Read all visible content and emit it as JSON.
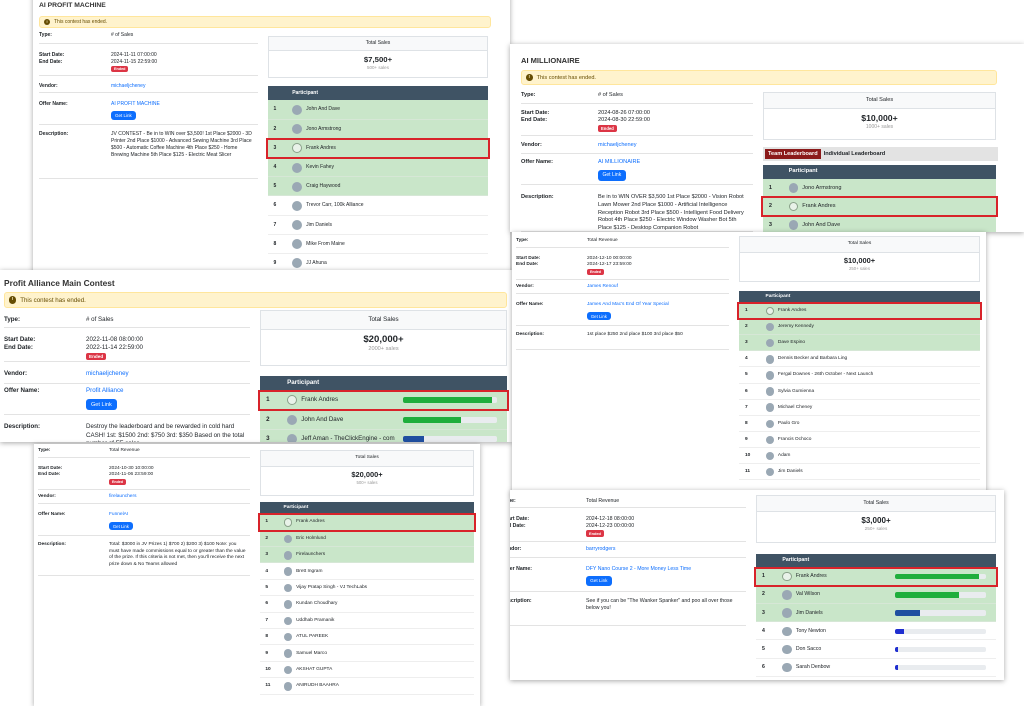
{
  "cards": [
    {
      "id": "c1",
      "title": "AI PROFIT MACHINE",
      "alert": "This contest has ended.",
      "type_label": "Type:",
      "type": "# of Sales",
      "start_label": "Start Date:",
      "start": "2024-11-11 07:00:00",
      "end_label": "End Date:",
      "end": "2024-11-15 22:59:00",
      "ended_badge": "Ended",
      "vendor_label": "Vendor:",
      "vendor": "michaeljcheney",
      "offer_label": "Offer Name:",
      "offer": "AI PROFIT MACHINE",
      "getlink": "Get Link",
      "desc_label": "Description:",
      "desc": "JV CONTEST - Be in to WIN over $3,500! 1st Place $2000 - 3D Printer 2nd Place $1000 - Advanced Sewing Machine 3rd Place $500 - Automatic Coffee Machine 4th Place $250 - Home Brewing Machine 5th Place $125 - Electric Meat Slicer",
      "sales_header": "Total Sales",
      "sales_amount": "$7,500+",
      "sales_count": "500+ sales",
      "participant_header": "Participant",
      "participants": [
        {
          "rank": "1",
          "name": "John And Dave"
        },
        {
          "rank": "2",
          "name": "Jono Armstrong"
        },
        {
          "rank": "3",
          "name": "Frank Andres"
        },
        {
          "rank": "4",
          "name": "Kevin Fahey"
        },
        {
          "rank": "5",
          "name": "Craig Haywood"
        },
        {
          "rank": "6",
          "name": "Trevor Carr, 100k Alliance"
        },
        {
          "rank": "7",
          "name": "Jim Daniels"
        },
        {
          "rank": "8",
          "name": "Mike From Maine"
        },
        {
          "rank": "9",
          "name": "JJ Ahuna"
        },
        {
          "rank": "10",
          "name": "Hunter Barker"
        }
      ]
    },
    {
      "id": "c2",
      "title": "AI MILLIONAIRE",
      "alert": "This contest has ended.",
      "type_label": "Type:",
      "type": "# of Sales",
      "start_label": "Start Date:",
      "start": "2024-08-26 07:00:00",
      "end_label": "End Date:",
      "end": "2024-08-30 22:59:00",
      "ended_badge": "Ended",
      "vendor_label": "Vendor:",
      "vendor": "michaeljcheney",
      "offer_label": "Offer Name:",
      "offer": "AI MILLIONAIRE",
      "getlink": "Get Link",
      "desc_label": "Description:",
      "desc": "Be in to WIN OVER $3,500 1st Place $2000 - Vision Robot Lawn Mower 2nd Place $1000 - Artificial Intelligence Reception Robot 3rd Place $500 - Intelligent Food Delivery Robot 4th Place $250 - Electric Window Washer Bot 5th Place $125 - Desktop Companion Robot",
      "sales_header": "Total Sales",
      "sales_amount": "$10,000+",
      "sales_count": "1000+ sales",
      "tab_team": "Team Leaderboard",
      "tab_individual": "Individual Leaderboard",
      "participant_header": "Participant",
      "participants": [
        {
          "rank": "1",
          "name": "Jono Armstrong"
        },
        {
          "rank": "2",
          "name": "Frank Andres"
        },
        {
          "rank": "3",
          "name": "John And Dave"
        }
      ]
    },
    {
      "id": "c3",
      "title": "Profit Alliance Main Contest",
      "alert": "This contest has ended.",
      "type_label": "Type:",
      "type": "# of Sales",
      "start_label": "Start Date:",
      "start": "2022-11-08 08:00:00",
      "end_label": "End Date:",
      "end": "2022-11-14 22:59:00",
      "ended_badge": "Ended",
      "vendor_label": "Vendor:",
      "vendor": "michaeljcheney",
      "offer_label": "Offer Name:",
      "offer": "Profit Alliance",
      "getlink": "Get Link",
      "desc_label": "Description:",
      "desc": "Destroy the leaderboard and be rewarded in cold hard CASH! 1st: $1500 2nd: $750 3rd: $350 Based on the total number of FE sales",
      "sales_header": "Total Sales",
      "sales_amount": "$20,000+",
      "sales_count": "2000+ sales",
      "participant_header": "Participant",
      "participants": [
        {
          "rank": "1",
          "name": "Frank Andres",
          "bar": 0.95,
          "color": "#1fae3c"
        },
        {
          "rank": "2",
          "name": "John And Dave",
          "bar": 0.62,
          "color": "#1fae3c"
        },
        {
          "rank": "3",
          "name": "Jeff Aman - TheClickEngine - com",
          "bar": 0.22,
          "color": "#1f4fa0"
        }
      ]
    },
    {
      "id": "c4",
      "title": "",
      "type_label": "Type:",
      "type": "Total Revenue",
      "start_label": "Start Date:",
      "start": "2024-12-10 00:00:00",
      "end_label": "End Date:",
      "end": "2024-12-17 23:59:00",
      "ended_badge": "Ended",
      "vendor_label": "Vendor:",
      "vendor": "James Renouf",
      "offer_label": "Offer Name:",
      "offer": "James And Mac's End Of Year Special",
      "getlink": "Get Link",
      "desc_label": "Description:",
      "desc": "1st place $250 2nd place $100 3rd place $50",
      "sales_header": "Total Sales",
      "sales_amount": "$10,000+",
      "sales_count": "250+ sales",
      "participant_header": "Participant",
      "participants": [
        {
          "rank": "1",
          "name": "Frank Andres"
        },
        {
          "rank": "2",
          "name": "Jeremy Kennedy"
        },
        {
          "rank": "3",
          "name": "Dave Espino"
        },
        {
          "rank": "4",
          "name": "Dennis Becker and Barbara Ling"
        },
        {
          "rank": "5",
          "name": "Fergal Downes - 26th October - Next Launch"
        },
        {
          "rank": "6",
          "name": "Sylvia Gumienna"
        },
        {
          "rank": "7",
          "name": "Michael Cheney"
        },
        {
          "rank": "8",
          "name": "Paulo Gro"
        },
        {
          "rank": "9",
          "name": "Francis Ochoco"
        },
        {
          "rank": "10",
          "name": "Adam"
        },
        {
          "rank": "11",
          "name": "Jim Daniels"
        }
      ]
    },
    {
      "id": "c5",
      "title": "",
      "type_label": "Type:",
      "type": "Total Revenue",
      "start_label": "Start Date:",
      "start": "2024-10-30 10:00:00",
      "end_label": "End Date:",
      "end": "2024-11-06 23:59:00",
      "ended_badge": "Ended",
      "vendor_label": "Vendor:",
      "vendor": "firelaunchers",
      "offer_label": "Offer Name:",
      "offer": "FunnelAI",
      "getlink": "Get Link",
      "desc_label": "Description:",
      "desc": "Total: $3000 in JV Prizes 1) $700 2) $200 3) $100 Note: you must have made commissions equal to or greater than the value of the prize. If this criteria is not met, then you'll receive the next prize down & No Teams allowed",
      "sales_header": "Total Sales",
      "sales_amount": "$20,000+",
      "sales_count": "500+ sales",
      "participant_header": "Participant",
      "participants": [
        {
          "rank": "1",
          "name": "Frank Andres"
        },
        {
          "rank": "2",
          "name": "Eric Holmlund"
        },
        {
          "rank": "3",
          "name": "Firelaunchers"
        },
        {
          "rank": "4",
          "name": "Brett Ingram"
        },
        {
          "rank": "5",
          "name": "Vijay Pratap Singh - VJ TechLabs"
        },
        {
          "rank": "6",
          "name": "Kundan Choudhary"
        },
        {
          "rank": "7",
          "name": "Uddhab Pramanik"
        },
        {
          "rank": "8",
          "name": "ATUL PAREEK"
        },
        {
          "rank": "9",
          "name": "Samuel Marco"
        },
        {
          "rank": "10",
          "name": "AKSHAT GUPTA"
        },
        {
          "rank": "11",
          "name": "ANIRUDH BAAHRA"
        }
      ]
    },
    {
      "id": "c6",
      "title": "",
      "type_label": "pe:",
      "type": "Total Revenue",
      "start_label": "art Date:",
      "start": "2024-12-18 08:00:00",
      "end_label": "d Date:",
      "end": "2024-12-23 00:00:00",
      "ended_badge": "Ended",
      "vendor_label": "ndor:",
      "vendor": "barryrodgers",
      "offer_label": "fer Name:",
      "offer": "DFY Nano Course 2 - More Money Less Time",
      "getlink": "Get Link",
      "desc_label": "scription:",
      "desc": "See if you can be \"The Wanker Spanker\" and poo all over those below you!",
      "sales_header": "Total Sales",
      "sales_amount": "$3,000+",
      "sales_count": "250+ sales",
      "participant_header": "Participant",
      "participants": [
        {
          "rank": "1",
          "name": "Frank Andres",
          "bar": 0.92,
          "color": "#1fae3c"
        },
        {
          "rank": "2",
          "name": "Val Wilson",
          "bar": 0.7,
          "color": "#1fae3c"
        },
        {
          "rank": "3",
          "name": "Jim Daniels",
          "bar": 0.27,
          "color": "#1f4fa0"
        },
        {
          "rank": "4",
          "name": "Tony Newton",
          "bar": 0.1,
          "color": "#1f2fd0"
        },
        {
          "rank": "5",
          "name": "Don Sacco",
          "bar": 0.03,
          "color": "#1f2fd0"
        },
        {
          "rank": "6",
          "name": "Sarah Denbow",
          "bar": 0.03,
          "color": "#1f2fd0"
        }
      ]
    }
  ]
}
